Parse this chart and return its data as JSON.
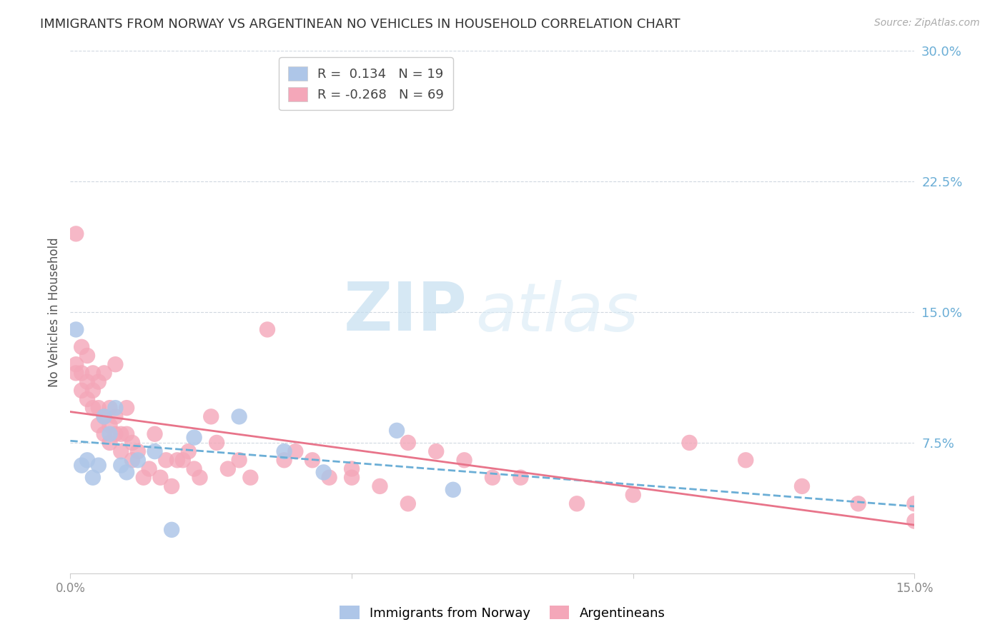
{
  "title": "IMMIGRANTS FROM NORWAY VS ARGENTINEAN NO VEHICLES IN HOUSEHOLD CORRELATION CHART",
  "source": "Source: ZipAtlas.com",
  "ylabel": "No Vehicles in Household",
  "x_min": 0.0,
  "x_max": 0.15,
  "y_min": 0.0,
  "y_max": 0.3,
  "x_ticks": [
    0.0,
    0.05,
    0.1,
    0.15
  ],
  "x_tick_labels": [
    "0.0%",
    "",
    "",
    "15.0%"
  ],
  "y_ticks_right": [
    0.075,
    0.15,
    0.225,
    0.3
  ],
  "y_tick_labels_right": [
    "7.5%",
    "15.0%",
    "22.5%",
    "30.0%"
  ],
  "norway_color": "#aec6e8",
  "argentina_color": "#f4a7b9",
  "norway_line_color": "#6baed6",
  "argentina_line_color": "#e8748a",
  "norway_x": [
    0.001,
    0.002,
    0.003,
    0.004,
    0.005,
    0.006,
    0.007,
    0.008,
    0.009,
    0.01,
    0.012,
    0.015,
    0.018,
    0.022,
    0.03,
    0.038,
    0.045,
    0.058,
    0.068
  ],
  "norway_y": [
    0.14,
    0.062,
    0.065,
    0.055,
    0.062,
    0.09,
    0.08,
    0.095,
    0.062,
    0.058,
    0.065,
    0.07,
    0.025,
    0.078,
    0.09,
    0.07,
    0.058,
    0.082,
    0.048
  ],
  "argentina_x": [
    0.001,
    0.001,
    0.001,
    0.002,
    0.002,
    0.002,
    0.003,
    0.003,
    0.003,
    0.004,
    0.004,
    0.004,
    0.005,
    0.005,
    0.005,
    0.006,
    0.006,
    0.006,
    0.007,
    0.007,
    0.007,
    0.008,
    0.008,
    0.008,
    0.009,
    0.009,
    0.01,
    0.01,
    0.011,
    0.011,
    0.012,
    0.013,
    0.014,
    0.015,
    0.016,
    0.017,
    0.018,
    0.019,
    0.02,
    0.021,
    0.022,
    0.023,
    0.025,
    0.026,
    0.028,
    0.03,
    0.032,
    0.035,
    0.038,
    0.04,
    0.043,
    0.046,
    0.05,
    0.055,
    0.06,
    0.065,
    0.07,
    0.075,
    0.08,
    0.09,
    0.1,
    0.11,
    0.12,
    0.13,
    0.14,
    0.15,
    0.15,
    0.05,
    0.06
  ],
  "argentina_y": [
    0.195,
    0.12,
    0.115,
    0.13,
    0.115,
    0.105,
    0.125,
    0.11,
    0.1,
    0.115,
    0.105,
    0.095,
    0.11,
    0.095,
    0.085,
    0.115,
    0.09,
    0.08,
    0.095,
    0.085,
    0.075,
    0.12,
    0.09,
    0.08,
    0.08,
    0.07,
    0.095,
    0.08,
    0.075,
    0.065,
    0.07,
    0.055,
    0.06,
    0.08,
    0.055,
    0.065,
    0.05,
    0.065,
    0.065,
    0.07,
    0.06,
    0.055,
    0.09,
    0.075,
    0.06,
    0.065,
    0.055,
    0.14,
    0.065,
    0.07,
    0.065,
    0.055,
    0.055,
    0.05,
    0.04,
    0.07,
    0.065,
    0.055,
    0.055,
    0.04,
    0.045,
    0.075,
    0.065,
    0.05,
    0.04,
    0.03,
    0.04,
    0.06,
    0.075
  ],
  "watermark_zip": "ZIP",
  "watermark_atlas": "atlas",
  "background_color": "#ffffff",
  "grid_color": "#d0d8e0"
}
